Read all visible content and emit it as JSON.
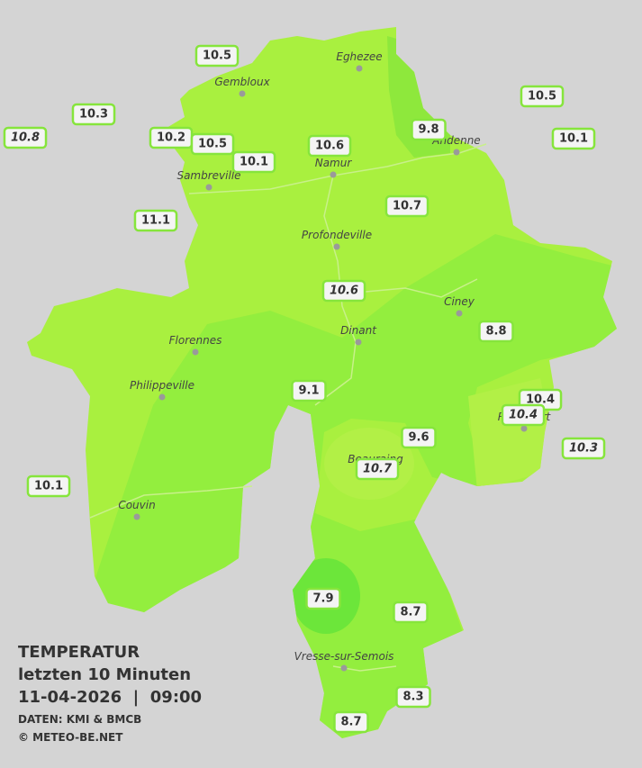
{
  "header": {
    "title": "TEMPERATUR",
    "subtitle": "letzten 10 Minuten",
    "datetime": "11-04-2026  |  09:00",
    "source": "DATEN: KMI & BMCB",
    "copyright": "© METEO-BE.NET"
  },
  "cities": [
    "Eghezee",
    "Gembloux",
    "Andenne",
    "Namur",
    "Sambreville",
    "Profondeville",
    "Ciney",
    "Dinant",
    "Florennes",
    "Philippeville",
    "Rochefort",
    "Beauraing",
    "Couvin",
    "Vresse-sur-Semois"
  ],
  "stations": [
    {
      "value": 10.5,
      "italic": false
    },
    {
      "value": 10.3,
      "italic": false
    },
    {
      "value": 10.8,
      "italic": true
    },
    {
      "value": 10.2,
      "italic": false
    },
    {
      "value": 10.5,
      "italic": false
    },
    {
      "value": 10.1,
      "italic": false
    },
    {
      "value": 10.6,
      "italic": false
    },
    {
      "value": 9.8,
      "italic": false
    },
    {
      "value": 10.5,
      "italic": false
    },
    {
      "value": 10.1,
      "italic": false
    },
    {
      "value": 11.1,
      "italic": false
    },
    {
      "value": 10.7,
      "italic": false
    },
    {
      "value": 10.6,
      "italic": true
    },
    {
      "value": 8.8,
      "italic": false
    },
    {
      "value": 9.1,
      "italic": false
    },
    {
      "value": 10.4,
      "italic": false
    },
    {
      "value": 10.4,
      "italic": true
    },
    {
      "value": 9.6,
      "italic": false
    },
    {
      "value": 10.3,
      "italic": true
    },
    {
      "value": 10.7,
      "italic": true
    },
    {
      "value": 10.1,
      "italic": false
    },
    {
      "value": 7.9,
      "italic": false
    },
    {
      "value": 8.7,
      "italic": false
    },
    {
      "value": 8.3,
      "italic": false
    },
    {
      "value": 8.7,
      "italic": false
    }
  ]
}
